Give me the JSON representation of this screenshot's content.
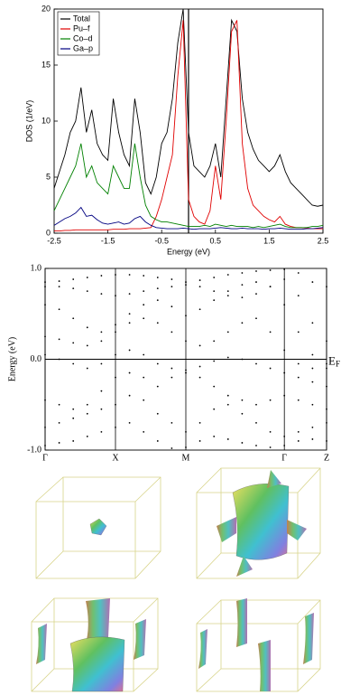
{
  "chart_data": [
    {
      "type": "line",
      "xlabel": "Energy (eV)",
      "ylabel": "DOS (1/eV)",
      "x": [
        -2.5,
        -2.4,
        -2.3,
        -2.2,
        -2.1,
        -2.0,
        -1.9,
        -1.8,
        -1.7,
        -1.6,
        -1.5,
        -1.4,
        -1.3,
        -1.2,
        -1.1,
        -1.0,
        -0.9,
        -0.8,
        -0.7,
        -0.6,
        -0.5,
        -0.4,
        -0.3,
        -0.2,
        -0.1,
        0.0,
        0.1,
        0.2,
        0.3,
        0.4,
        0.5,
        0.6,
        0.7,
        0.8,
        0.9,
        1.0,
        1.1,
        1.2,
        1.3,
        1.4,
        1.5,
        1.6,
        1.7,
        1.8,
        1.9,
        2.0,
        2.1,
        2.2,
        2.3,
        2.4,
        2.5
      ],
      "series": [
        {
          "name": "Total",
          "color": "#000000",
          "values": [
            4,
            5.5,
            7,
            9,
            10,
            13,
            9,
            11,
            8,
            7,
            6.5,
            12,
            9,
            7,
            6,
            12,
            9,
            4.5,
            3.5,
            5,
            8,
            9,
            12,
            17,
            20,
            9,
            6,
            5.5,
            5,
            6,
            8,
            5,
            12,
            19,
            18,
            12,
            9,
            7.5,
            6.5,
            6,
            5.5,
            6,
            7,
            5.5,
            4.5,
            4,
            3.5,
            3,
            2.5,
            2.4,
            2.5
          ]
        },
        {
          "name": "Pu–f",
          "color": "#e00000",
          "values": [
            0.2,
            0.2,
            0.25,
            0.25,
            0.3,
            0.3,
            0.3,
            0.3,
            0.3,
            0.3,
            0.3,
            0.35,
            0.35,
            0.35,
            0.4,
            0.4,
            0.4,
            0.45,
            0.5,
            1.5,
            3,
            5,
            7,
            14,
            19,
            3,
            1.5,
            1,
            0.8,
            2,
            6,
            3,
            10,
            18,
            19,
            8,
            4,
            2.5,
            2,
            1.5,
            1.2,
            1,
            1.5,
            0.8,
            0.6,
            0.5,
            0.5,
            0.45,
            0.4,
            0.4,
            0.4
          ]
        },
        {
          "name": "Co–d",
          "color": "#008000",
          "values": [
            2,
            3,
            4,
            5,
            6,
            8,
            5,
            6,
            4.5,
            4,
            3.5,
            6,
            5,
            4,
            4,
            8,
            5,
            2.5,
            1.5,
            1.2,
            1,
            1,
            0.9,
            0.8,
            0.7,
            0.6,
            0.6,
            0.6,
            0.7,
            0.6,
            0.8,
            0.7,
            0.6,
            0.7,
            0.6,
            0.6,
            0.6,
            0.5,
            0.6,
            0.5,
            0.6,
            0.7,
            0.8,
            0.6,
            0.5,
            0.5,
            0.5,
            0.5,
            0.6,
            0.6,
            0.7
          ]
        },
        {
          "name": "Ga–p",
          "color": "#000080",
          "values": [
            0.7,
            1,
            1.3,
            1.5,
            1.8,
            2.3,
            1.5,
            1.6,
            1.2,
            0.9,
            0.8,
            0.9,
            1,
            0.8,
            0.9,
            1.3,
            1.5,
            1,
            0.7,
            0.5,
            0.45,
            0.4,
            0.4,
            0.4,
            0.45,
            0.4,
            0.35,
            0.4,
            0.4,
            0.4,
            0.45,
            0.5,
            0.45,
            0.4,
            0.4,
            0.45,
            0.4,
            0.4,
            0.4,
            0.35,
            0.4,
            0.4,
            0.45,
            0.4,
            0.35,
            0.35,
            0.35,
            0.4,
            0.4,
            0.45,
            0.5
          ]
        }
      ],
      "xlim": [
        -2.5,
        2.5
      ],
      "xticks": [
        -2.5,
        -1.5,
        -0.5,
        0.5,
        1.5,
        2.5
      ],
      "ylim": [
        0,
        20
      ],
      "yticks": [
        0,
        5,
        10,
        15,
        20
      ],
      "fermi_level": 0,
      "legend": "top-left"
    },
    {
      "type": "scatter",
      "ylabel": "Energy (eV)",
      "fermi_label": {
        "main": "E",
        "sub": "F"
      },
      "x": [
        0,
        0.2,
        0.4,
        0.6,
        0.8,
        1.0,
        1.2,
        1.4,
        1.6,
        1.8,
        2.0,
        2.2,
        2.4,
        2.6,
        2.8,
        3.0,
        3.2,
        3.4,
        3.6,
        3.8,
        4.0
      ],
      "series": [
        {
          "color": "#000000",
          "values": [
            0.85,
            0.86,
            0.88,
            0.9,
            0.92,
            0.93,
            0.93,
            0.92,
            0.9,
            0.88,
            0.85,
            0.87,
            0.9,
            0.93,
            0.95,
            0.97,
            0.98,
            0.99,
            0.95,
            0.85,
            0.8
          ]
        },
        {
          "color": "#000000",
          "values": [
            0.8,
            0.8,
            0.78,
            0.75,
            0.72,
            0.7,
            0.72,
            0.75,
            0.78,
            0.8,
            0.82,
            0.8,
            0.75,
            0.7,
            0.68,
            0.72,
            0.8,
            0.88,
            0.7,
            0.4,
            0.2
          ]
        },
        {
          "color": "#000000",
          "values": [
            0.6,
            0.55,
            0.45,
            0.35,
            0.3,
            0.38,
            0.5,
            0.6,
            0.65,
            0.58,
            0.48,
            0.55,
            0.65,
            0.75,
            0.82,
            0.85,
            0.8,
            0.6,
            0.3,
            0.05,
            -0.05
          ]
        },
        {
          "color": "#000000",
          "values": [
            0.25,
            0.22,
            0.18,
            0.15,
            0.2,
            0.3,
            0.4,
            0.45,
            0.4,
            0.3,
            0.2,
            0.15,
            0.2,
            0.3,
            0.4,
            0.45,
            0.3,
            0.1,
            -0.05,
            -0.1,
            -0.1
          ]
        },
        {
          "color": "#000000",
          "values": [
            0.05,
            0.0,
            -0.05,
            -0.1,
            -0.05,
            0.05,
            0.1,
            0.05,
            -0.05,
            -0.1,
            -0.12,
            -0.08,
            -0.02,
            0.02,
            0.0,
            -0.05,
            -0.1,
            -0.15,
            -0.2,
            -0.25,
            -0.3
          ]
        },
        {
          "color": "#000000",
          "values": [
            -0.45,
            -0.5,
            -0.55,
            -0.5,
            -0.35,
            -0.2,
            -0.15,
            -0.2,
            -0.3,
            -0.2,
            -0.15,
            -0.2,
            -0.3,
            -0.4,
            -0.45,
            -0.5,
            -0.45,
            -0.4,
            -0.45,
            -0.5,
            -0.55
          ]
        },
        {
          "color": "#000000",
          "values": [
            -0.75,
            -0.7,
            -0.65,
            -0.6,
            -0.55,
            -0.5,
            -0.4,
            -0.45,
            -0.6,
            -0.7,
            -0.8,
            -0.7,
            -0.55,
            -0.5,
            -0.6,
            -0.7,
            -0.8,
            -0.85,
            -0.8,
            -0.75,
            -0.7
          ]
        },
        {
          "color": "#000000",
          "values": [
            -0.95,
            -0.92,
            -0.9,
            -0.85,
            -0.8,
            -0.75,
            -0.7,
            -0.8,
            -0.9,
            -0.98,
            -0.97,
            -0.9,
            -0.85,
            -0.88,
            -0.92,
            -0.95,
            -0.97,
            -0.95,
            -0.9,
            -0.88,
            -0.9
          ]
        }
      ],
      "xlim": [
        0,
        4.0
      ],
      "xticks": [
        {
          "value": 0,
          "label": "Γ"
        },
        {
          "value": 1.0,
          "label": "X"
        },
        {
          "value": 2.0,
          "label": "M"
        },
        {
          "value": 3.4,
          "label": "Γ"
        },
        {
          "value": 4.0,
          "label": "Z"
        }
      ],
      "ylim": [
        -1,
        1
      ],
      "yticks": [
        {
          "value": -1,
          "label": "-1.0"
        },
        {
          "value": 0,
          "label": "0.0"
        },
        {
          "value": 1,
          "label": "1.0"
        }
      ],
      "fermi_level": 0,
      "grid": true
    }
  ]
}
